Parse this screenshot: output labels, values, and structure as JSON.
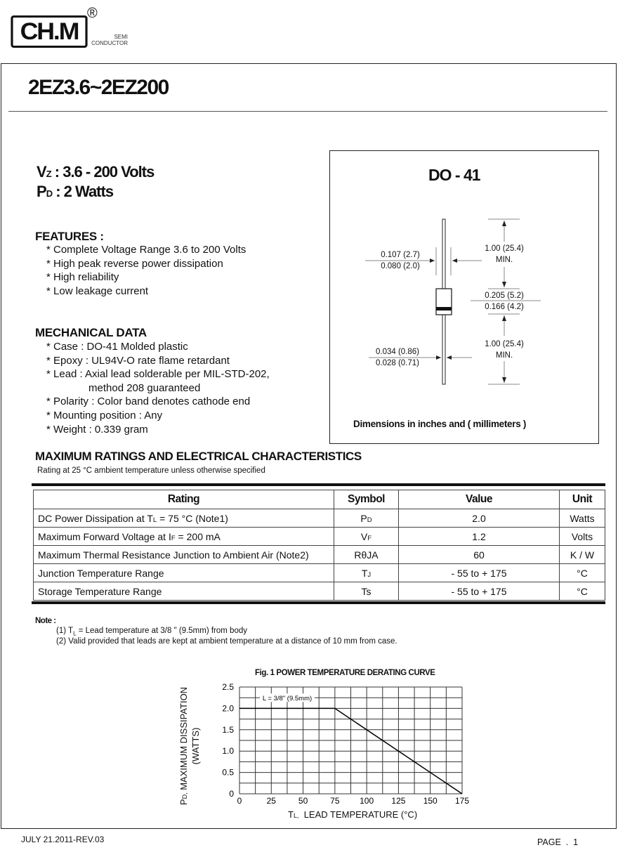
{
  "header": {
    "logo_text": "CH.M",
    "registered": "®",
    "company_line1": "SEMI",
    "company_line2": "CONDUCTOR"
  },
  "title": "2EZ3.6~2EZ200",
  "specs": [
    {
      "sym": "V",
      "sub": "Z",
      "text": ": 3.6 - 200 Volts"
    },
    {
      "sym": "P",
      "sub": "D",
      "text": ": 2 Watts"
    }
  ],
  "features": {
    "heading": "FEATURES :",
    "items": [
      "* Complete Voltage Range 3.6 to 200 Volts",
      "* High peak reverse power dissipation",
      "* High reliability",
      "* Low leakage current"
    ]
  },
  "mechanical": {
    "heading": "MECHANICAL DATA",
    "items": [
      "* Case : DO-41 Molded plastic",
      "* Epoxy : UL94V-O rate flame retardant",
      "* Lead : Axial lead solderable per MIL-STD-202,",
      "method 208 guaranteed",
      "* Polarity : Color band denotes cathode end",
      "* Mounting position : Any",
      "* Weight : 0.339 gram"
    ]
  },
  "package": {
    "title": "DO - 41",
    "body_dia_max": "0.107 (2.7)",
    "body_dia_min": "0.080 (2.0)",
    "lead_len_top": "1.00 (25.4)",
    "lead_len_top_note": "MIN.",
    "body_len_max": "0.205 (5.2)",
    "body_len_min": "0.166 (4.2)",
    "lead_len_bot": "1.00 (25.4)",
    "lead_len_bot_note": "MIN.",
    "lead_dia_max": "0.034 (0.86)",
    "lead_dia_min": "0.028 (0.71)",
    "caption": "Dimensions in inches and ( millimeters )"
  },
  "ratings": {
    "title": "MAXIMUM RATINGS AND ELECTRICAL CHARACTERISTICS",
    "subtitle": "Rating at 25 °C ambient temperature unless otherwise specified",
    "headers": [
      "Rating",
      "Symbol",
      "Value",
      "Unit"
    ],
    "rows": [
      {
        "pre": "DC Power Dissipation at T",
        "presub": "L",
        "post": " = 75 °C (Note1)",
        "sym": "P",
        "symsub": "D",
        "value": "2.0",
        "unit": "Watts"
      },
      {
        "pre": "Maximum Forward Voltage at I",
        "presub": "F",
        "post": " = 200 mA",
        "sym": "V",
        "symsub": "F",
        "value": "1.2",
        "unit": "Volts"
      },
      {
        "pre": "Maximum Thermal Resistance Junction to Ambient Air (Note2)",
        "presub": "",
        "post": "",
        "sym": "RθJA",
        "symsub": "",
        "value": "60",
        "unit": "K / W"
      },
      {
        "pre": "Junction Temperature Range",
        "presub": "",
        "post": "",
        "sym": "T",
        "symsub": "J",
        "value": "- 55 to + 175",
        "unit": "°C"
      },
      {
        "pre": "Storage Temperature Range",
        "presub": "",
        "post": "",
        "sym": "Ts",
        "symsub": "",
        "value": "- 55 to + 175",
        "unit": "°C"
      }
    ]
  },
  "notes": {
    "heading": "Note :",
    "n1_pre": "(1) T",
    "n1_sub": "L",
    "n1_post": " = Lead temperature at 3/8 \" (9.5mm) from body",
    "n2": "(2) Valid provided that leads are kept at ambient temperature at a distance of 10 mm from case."
  },
  "chart_data": {
    "type": "line",
    "title": "Fig. 1  POWER TEMPERATURE DERATING CURVE",
    "xlabel_sym": "T",
    "xlabel_sub": "L,",
    "xlabel": "  LEAD TEMPERATURE (°C)",
    "ylabel_sym": "P",
    "ylabel_sub": "D,",
    "ylabel": " MAXIMUM DISSIPATION",
    "ylabel2": "(WATTS)",
    "xlim": [
      0,
      175
    ],
    "ylim": [
      0,
      2.5
    ],
    "xticks": [
      "0",
      "25",
      "50",
      "75",
      "100",
      "125",
      "150",
      "175"
    ],
    "yticks": [
      "0",
      "0.5",
      "1.0",
      "1.5",
      "2.0",
      "2.5"
    ],
    "grid": true,
    "annotation": "L = 3/8\" (9.5mm)",
    "series": [
      {
        "x": [
          0,
          75,
          175
        ],
        "y": [
          2.0,
          2.0,
          0
        ]
      }
    ]
  },
  "footer": {
    "date": "JULY 21.2011-REV.03",
    "page": "PAGE  .  1"
  }
}
